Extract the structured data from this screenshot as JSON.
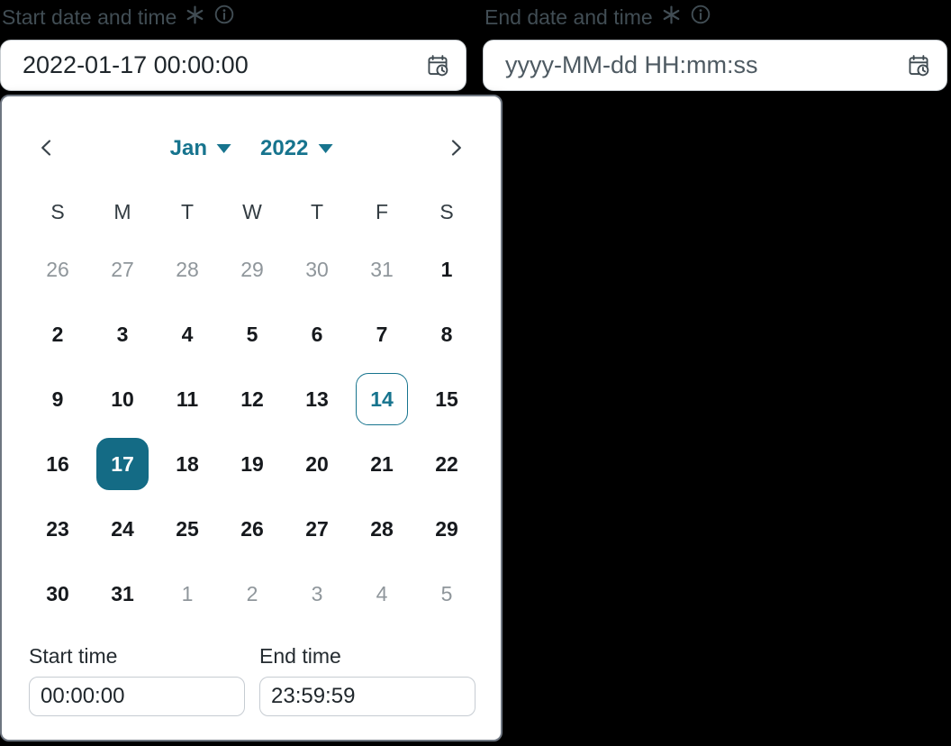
{
  "colors": {
    "accent": "#17748e",
    "selected_day_bg": "#146b85",
    "page_background": "#000000"
  },
  "start_field": {
    "label": "Start date and time",
    "required": true,
    "value": "2022-01-17 00:00:00",
    "icon": "calendar-clock-icon"
  },
  "end_field": {
    "label": "End date and time",
    "required": true,
    "placeholder": "yyyy-MM-dd HH:mm:ss",
    "icon": "calendar-clock-icon"
  },
  "calendar": {
    "month": "Jan",
    "year": "2022",
    "selected_date": "2022-01-17",
    "today_date": "2022-01-14",
    "weekdays": [
      "S",
      "M",
      "T",
      "W",
      "T",
      "F",
      "S"
    ],
    "weeks": [
      [
        {
          "day": "26",
          "muted": true
        },
        {
          "day": "27",
          "muted": true
        },
        {
          "day": "28",
          "muted": true
        },
        {
          "day": "29",
          "muted": true
        },
        {
          "day": "30",
          "muted": true
        },
        {
          "day": "31",
          "muted": true
        },
        {
          "day": "1"
        }
      ],
      [
        {
          "day": "2"
        },
        {
          "day": "3"
        },
        {
          "day": "4"
        },
        {
          "day": "5"
        },
        {
          "day": "6"
        },
        {
          "day": "7"
        },
        {
          "day": "8"
        }
      ],
      [
        {
          "day": "9"
        },
        {
          "day": "10"
        },
        {
          "day": "11"
        },
        {
          "day": "12"
        },
        {
          "day": "13"
        },
        {
          "day": "14",
          "today": true
        },
        {
          "day": "15"
        }
      ],
      [
        {
          "day": "16"
        },
        {
          "day": "17",
          "selected": true
        },
        {
          "day": "18"
        },
        {
          "day": "19"
        },
        {
          "day": "20"
        },
        {
          "day": "21"
        },
        {
          "day": "22"
        }
      ],
      [
        {
          "day": "23"
        },
        {
          "day": "24"
        },
        {
          "day": "25"
        },
        {
          "day": "26"
        },
        {
          "day": "27"
        },
        {
          "day": "28"
        },
        {
          "day": "29"
        }
      ],
      [
        {
          "day": "30"
        },
        {
          "day": "31"
        },
        {
          "day": "1",
          "muted": true
        },
        {
          "day": "2",
          "muted": true
        },
        {
          "day": "3",
          "muted": true
        },
        {
          "day": "4",
          "muted": true
        },
        {
          "day": "5",
          "muted": true
        }
      ]
    ]
  },
  "time_fields": {
    "start": {
      "label": "Start time",
      "value": "00:00:00"
    },
    "end": {
      "label": "End time",
      "value": "23:59:59"
    }
  }
}
